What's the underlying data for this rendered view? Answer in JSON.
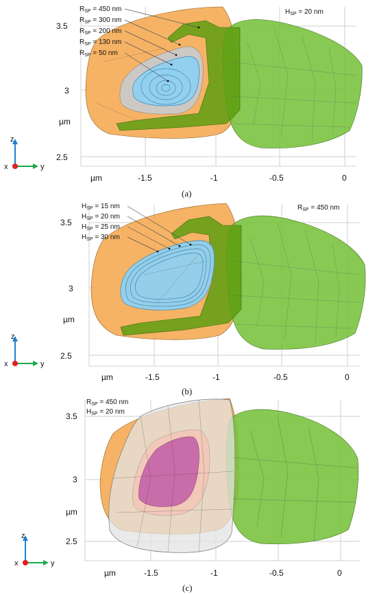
{
  "panels": [
    {
      "caption": "(a)",
      "label_corner": {
        "main": "H",
        "sub": "SP",
        "rest": " = 20 nm"
      },
      "annotations": [
        {
          "main": "R",
          "sub": "SP",
          "rest": " = 450 nm"
        },
        {
          "main": "R",
          "sub": "SP",
          "rest": " = 300 nm"
        },
        {
          "main": "R",
          "sub": "SP",
          "rest": " = 200 nm"
        },
        {
          "main": "R",
          "sub": "SP",
          "rest": " = 130 nm"
        },
        {
          "main": "R",
          "sub": "SP",
          "rest": " = 50 nm"
        }
      ],
      "z_ticks": [
        "3.5",
        "3",
        "2.5"
      ],
      "z_unit": "µm",
      "y_unit": "µm",
      "y_ticks": [
        "-1.5",
        "-1",
        "-0.5",
        "0"
      ]
    },
    {
      "caption": "(b)",
      "label_corner": {
        "main": "R",
        "sub": "SP",
        "rest": " = 450 nm"
      },
      "annotations": [
        {
          "main": "H",
          "sub": "SP",
          "rest": " = 15 nm"
        },
        {
          "main": "H",
          "sub": "SP",
          "rest": " = 20 nm"
        },
        {
          "main": "H",
          "sub": "SP",
          "rest": " = 25 nm"
        },
        {
          "main": "H",
          "sub": "SP",
          "rest": " = 30 nm"
        }
      ],
      "z_ticks": [
        "3.5",
        "3",
        "2.5"
      ],
      "z_unit": "µm",
      "y_unit": "µm",
      "y_ticks": [
        "-1.5",
        "-1",
        "-0.5",
        "0"
      ]
    },
    {
      "caption": "(c)",
      "annotations": [
        {
          "main": "R",
          "sub": "SP",
          "rest": " = 450 nm"
        },
        {
          "main": "H",
          "sub": "SP",
          "rest": " = 20 nm"
        }
      ],
      "z_ticks": [
        "3.5",
        "3",
        "2.5"
      ],
      "z_unit": "µm",
      "y_unit": "µm",
      "y_ticks": [
        "-1.5",
        "-1",
        "-0.5",
        "0"
      ]
    }
  ],
  "axes_triad": {
    "z": "z",
    "x": "x",
    "y": "y"
  },
  "colors": {
    "orange": "#f4a64a",
    "green": "#77c13c",
    "dark_green": "#5e9e12",
    "blue": "#8fd0f0",
    "gray": "#c9c9c9",
    "magenta": "#c462a8",
    "axis_blue": "#1f7fd0",
    "axis_green": "#1aa84a",
    "origin_red": "#e02020"
  }
}
